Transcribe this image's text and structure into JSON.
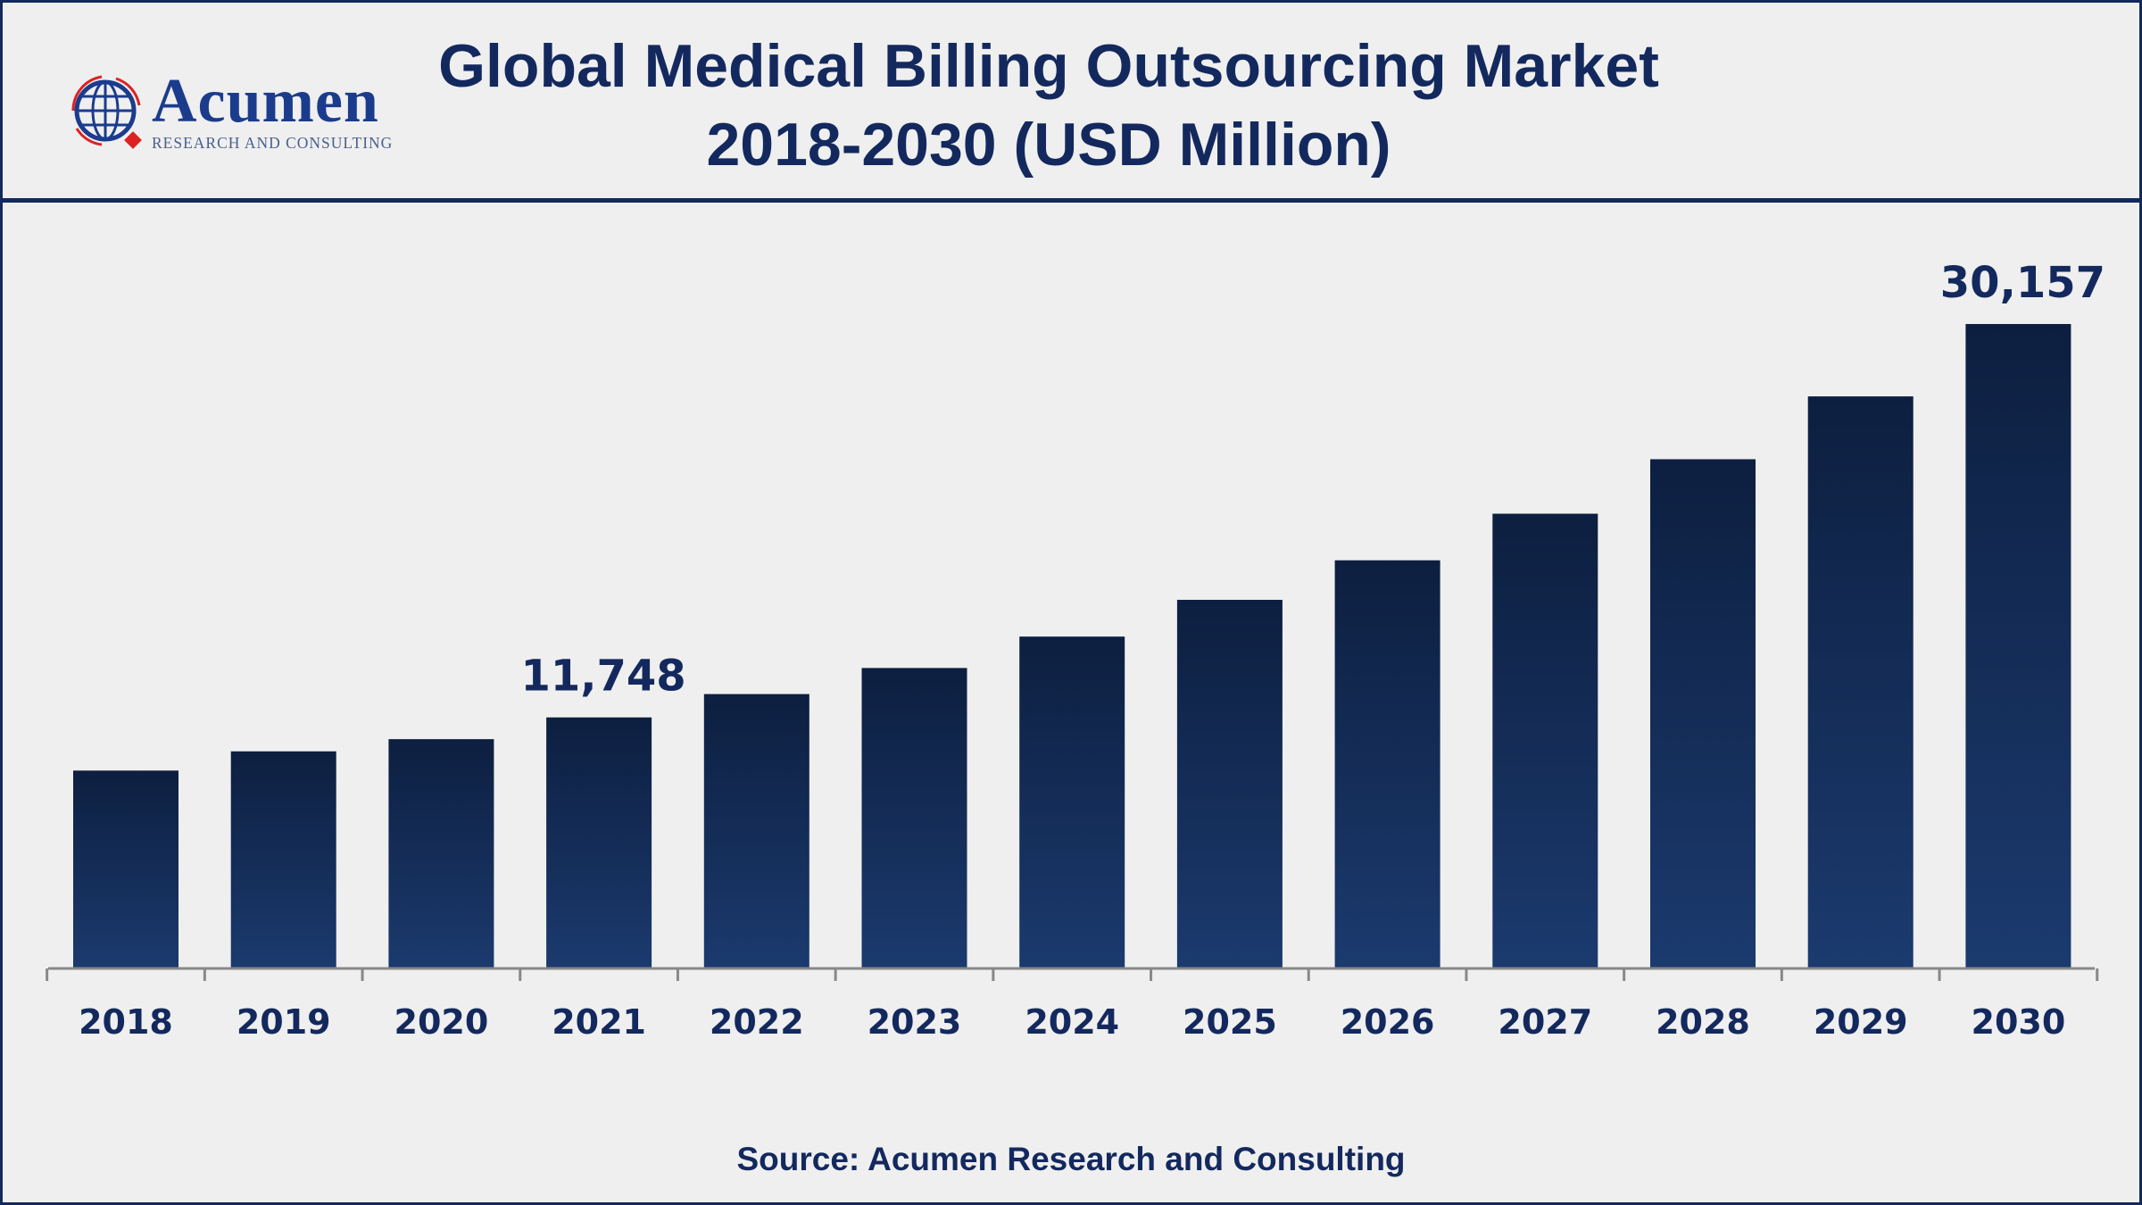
{
  "header": {
    "title_line1": "Global Medical Billing Outsourcing Market",
    "title_line2": "2018-2030 (USD Million)"
  },
  "logo": {
    "name": "Acumen",
    "tagline": "RESEARCH AND CONSULTING"
  },
  "source": "Source: Acumen Research and Consulting",
  "colors": {
    "bar_top": "#0d1f40",
    "bar_bottom": "#1b3a6e",
    "text": "#13295e",
    "axis": "#888888"
  },
  "chart_data": {
    "type": "bar",
    "title": "Global Medical Billing Outsourcing Market 2018-2030 (USD Million)",
    "xlabel": "",
    "ylabel": "USD Million",
    "categories": [
      "2018",
      "2019",
      "2020",
      "2021",
      "2022",
      "2023",
      "2024",
      "2025",
      "2026",
      "2027",
      "2028",
      "2029",
      "2030"
    ],
    "values": [
      9260,
      10160,
      10730,
      11748,
      12840,
      14060,
      15530,
      17250,
      19100,
      21280,
      23830,
      26770,
      30157
    ],
    "data_labels": [
      {
        "category": "2021",
        "text": "11,748"
      },
      {
        "category": "2030",
        "text": "30,157"
      }
    ],
    "ylim": [
      0,
      30157
    ],
    "grid": false,
    "legend": "none"
  }
}
